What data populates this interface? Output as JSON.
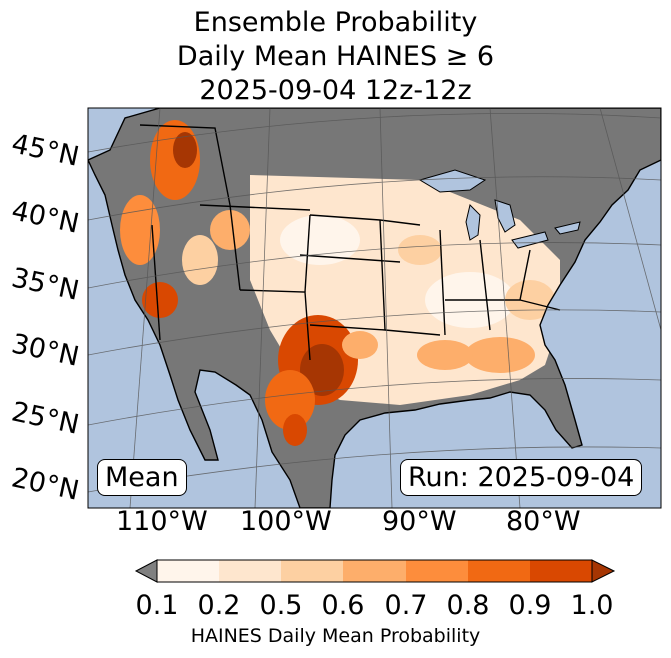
{
  "title_lines": [
    "Ensemble Probability",
    "Daily Mean HAINES ≥ 6",
    "2025-09-04 12z-12z"
  ],
  "lat_labels": [
    "45°N",
    "40°N",
    "35°N",
    "30°N",
    "25°N",
    "20°N"
  ],
  "lon_labels": [
    "110°W",
    "100°W",
    "90°W",
    "80°W"
  ],
  "stat_label": "Mean",
  "run_label": "Run: 2025-09-04",
  "colorbar": {
    "ticks": [
      "0.1",
      "0.2",
      "0.5",
      "0.6",
      "0.7",
      "0.8",
      "0.9",
      "1.0"
    ],
    "label": "HAINES Daily Mean Probability",
    "under_color": "#808080",
    "colors": [
      "#fff5eb",
      "#fee6ce",
      "#fdd0a2",
      "#fdae6b",
      "#fd8d3c",
      "#f16913",
      "#d94801",
      "#a63603"
    ]
  },
  "colors": {
    "ocean": "#b0c4de",
    "land_gray": "#777777",
    "lake": "#b0c4de",
    "border": "#000000",
    "grid": "#555555"
  }
}
